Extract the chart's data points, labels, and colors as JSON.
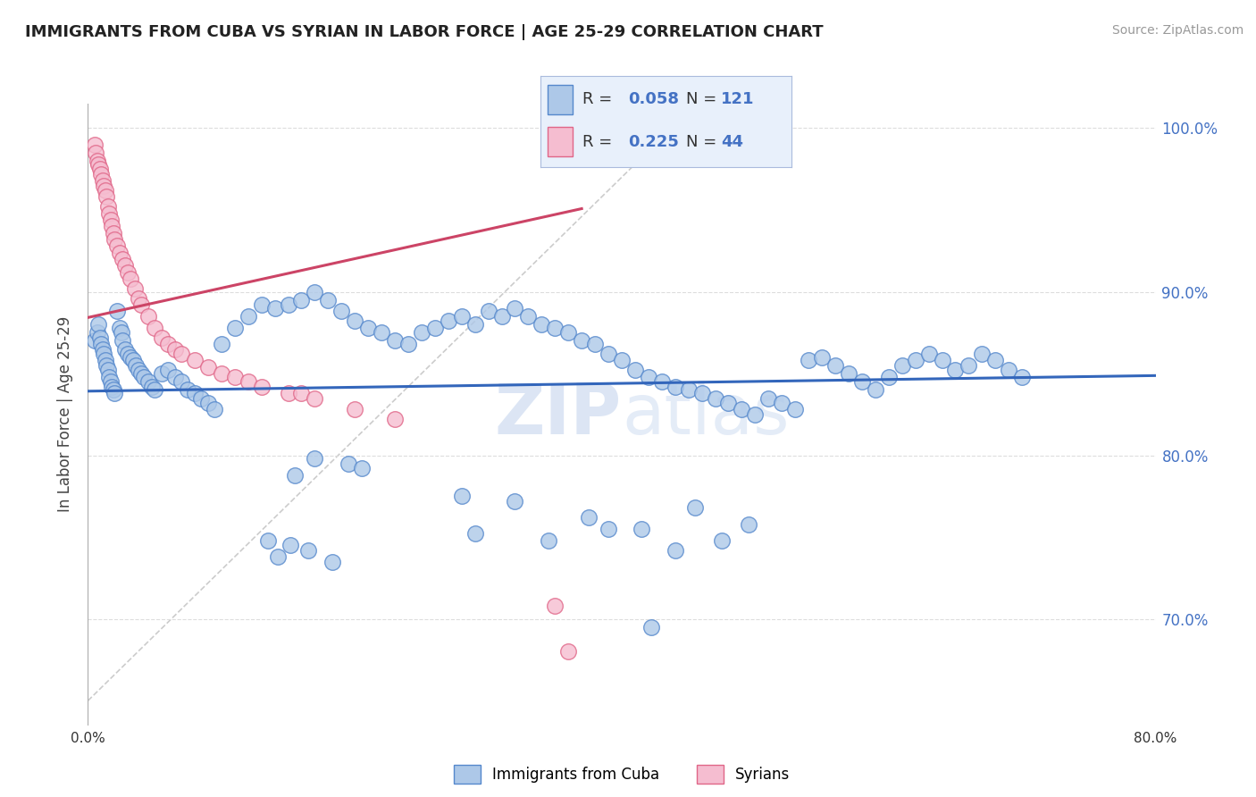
{
  "title": "IMMIGRANTS FROM CUBA VS SYRIAN IN LABOR FORCE | AGE 25-29 CORRELATION CHART",
  "source": "Source: ZipAtlas.com",
  "ylabel": "In Labor Force | Age 25-29",
  "xmin": 0.0,
  "xmax": 0.8,
  "ymin": 0.635,
  "ymax": 1.015,
  "cuba_color": "#adc8e8",
  "cuba_edge_color": "#5588cc",
  "syrian_color": "#f5bdd0",
  "syrian_edge_color": "#e06688",
  "cuba_line_color": "#3366bb",
  "syrian_line_color": "#cc4466",
  "ref_line_color": "#dddddd",
  "legend_bg_color": "#e8f0fb",
  "legend_border_color": "#aabbdd",
  "stat_text_color": "#333333",
  "stat_value_color": "#4472c4",
  "watermark_color": "#d0ddf0",
  "background_color": "#ffffff",
  "grid_color": "#dddddd",
  "cuba_R": 0.058,
  "cuba_N": 121,
  "syrian_R": 0.225,
  "syrian_N": 44,
  "cuba_x": [
    0.005,
    0.007,
    0.008,
    0.009,
    0.01,
    0.011,
    0.012,
    0.013,
    0.014,
    0.015,
    0.016,
    0.017,
    0.018,
    0.019,
    0.02,
    0.022,
    0.024,
    0.025,
    0.026,
    0.028,
    0.03,
    0.032,
    0.034,
    0.036,
    0.038,
    0.04,
    0.042,
    0.045,
    0.048,
    0.05,
    0.055,
    0.06,
    0.065,
    0.07,
    0.075,
    0.08,
    0.085,
    0.09,
    0.095,
    0.1,
    0.11,
    0.12,
    0.13,
    0.14,
    0.15,
    0.16,
    0.17,
    0.18,
    0.19,
    0.2,
    0.21,
    0.22,
    0.23,
    0.24,
    0.25,
    0.26,
    0.27,
    0.28,
    0.29,
    0.3,
    0.31,
    0.32,
    0.33,
    0.34,
    0.35,
    0.36,
    0.37,
    0.38,
    0.39,
    0.4,
    0.41,
    0.42,
    0.43,
    0.44,
    0.45,
    0.46,
    0.47,
    0.48,
    0.49,
    0.5,
    0.51,
    0.52,
    0.53,
    0.54,
    0.55,
    0.56,
    0.57,
    0.58,
    0.59,
    0.6,
    0.61,
    0.62,
    0.63,
    0.64,
    0.65,
    0.66,
    0.67,
    0.68,
    0.69,
    0.7,
    0.455,
    0.375,
    0.495,
    0.39,
    0.28,
    0.32,
    0.17,
    0.195,
    0.205,
    0.155,
    0.44,
    0.345,
    0.415,
    0.29,
    0.475,
    0.135,
    0.152,
    0.165,
    0.142,
    0.183,
    0.422
  ],
  "cuba_y": [
    0.87,
    0.875,
    0.88,
    0.872,
    0.868,
    0.865,
    0.862,
    0.858,
    0.855,
    0.852,
    0.848,
    0.845,
    0.842,
    0.84,
    0.838,
    0.888,
    0.878,
    0.875,
    0.87,
    0.865,
    0.862,
    0.86,
    0.858,
    0.855,
    0.852,
    0.85,
    0.848,
    0.845,
    0.842,
    0.84,
    0.85,
    0.852,
    0.848,
    0.845,
    0.84,
    0.838,
    0.835,
    0.832,
    0.828,
    0.868,
    0.878,
    0.885,
    0.892,
    0.89,
    0.892,
    0.895,
    0.9,
    0.895,
    0.888,
    0.882,
    0.878,
    0.875,
    0.87,
    0.868,
    0.875,
    0.878,
    0.882,
    0.885,
    0.88,
    0.888,
    0.885,
    0.89,
    0.885,
    0.88,
    0.878,
    0.875,
    0.87,
    0.868,
    0.862,
    0.858,
    0.852,
    0.848,
    0.845,
    0.842,
    0.84,
    0.838,
    0.835,
    0.832,
    0.828,
    0.825,
    0.835,
    0.832,
    0.828,
    0.858,
    0.86,
    0.855,
    0.85,
    0.845,
    0.84,
    0.848,
    0.855,
    0.858,
    0.862,
    0.858,
    0.852,
    0.855,
    0.862,
    0.858,
    0.852,
    0.848,
    0.768,
    0.762,
    0.758,
    0.755,
    0.775,
    0.772,
    0.798,
    0.795,
    0.792,
    0.788,
    0.742,
    0.748,
    0.755,
    0.752,
    0.748,
    0.748,
    0.745,
    0.742,
    0.738,
    0.735,
    0.695
  ],
  "syrian_x": [
    0.005,
    0.006,
    0.007,
    0.008,
    0.009,
    0.01,
    0.011,
    0.012,
    0.013,
    0.014,
    0.015,
    0.016,
    0.017,
    0.018,
    0.019,
    0.02,
    0.022,
    0.024,
    0.026,
    0.028,
    0.03,
    0.032,
    0.035,
    0.038,
    0.04,
    0.045,
    0.05,
    0.055,
    0.06,
    0.065,
    0.07,
    0.08,
    0.09,
    0.1,
    0.11,
    0.12,
    0.13,
    0.15,
    0.16,
    0.17,
    0.2,
    0.23,
    0.35,
    0.36
  ],
  "syrian_y": [
    0.99,
    0.985,
    0.98,
    0.978,
    0.975,
    0.972,
    0.968,
    0.965,
    0.962,
    0.958,
    0.952,
    0.948,
    0.944,
    0.94,
    0.936,
    0.932,
    0.928,
    0.924,
    0.92,
    0.916,
    0.912,
    0.908,
    0.902,
    0.896,
    0.892,
    0.885,
    0.878,
    0.872,
    0.868,
    0.865,
    0.862,
    0.858,
    0.854,
    0.85,
    0.848,
    0.845,
    0.842,
    0.838,
    0.838,
    0.835,
    0.828,
    0.822,
    0.708,
    0.68
  ]
}
